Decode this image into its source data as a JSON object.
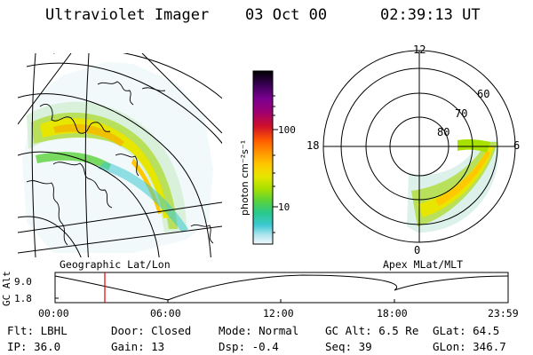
{
  "header": {
    "instrument": "Ultraviolet Imager",
    "date": "03 Oct 00",
    "time": "02:39:13 UT"
  },
  "left_panel": {
    "caption": "Geographic Lat/Lon"
  },
  "colorbar": {
    "label": "photon cm⁻²s⁻¹",
    "ticks": [
      "100",
      "10"
    ],
    "colors": [
      "#000000",
      "#3a0055",
      "#7a0090",
      "#a00070",
      "#c8002a",
      "#e6180a",
      "#ff5a00",
      "#ff9400",
      "#ffc800",
      "#e6e600",
      "#a8e000",
      "#5ad23a",
      "#28c88c",
      "#3cc8d2",
      "#96dcf0",
      "#e6f5fa"
    ]
  },
  "right_panel": {
    "caption": "Apex MLat/MLT",
    "mlt_labels": {
      "top": "12",
      "left": "18",
      "right": "6",
      "bottom": "0"
    },
    "mlat_labels": [
      "60",
      "70",
      "80"
    ]
  },
  "altitude_plot": {
    "ylabel": "GC Alt",
    "yticks": [
      "9.0",
      "1.8"
    ],
    "xticks": [
      "00:00",
      "06:00",
      "12:00",
      "18:00",
      "23:59"
    ],
    "marker_time": "02:39"
  },
  "info": {
    "row1": [
      "Flt: LBHL",
      "Door: Closed",
      "Mode: Normal",
      "GC Alt: 6.5 Re",
      "GLat:  64.5"
    ],
    "row2": [
      "IP: 36.0",
      "Gain: 13",
      "Dsp:   -0.4",
      "Seq: 39",
      "GLon: 346.7"
    ]
  }
}
